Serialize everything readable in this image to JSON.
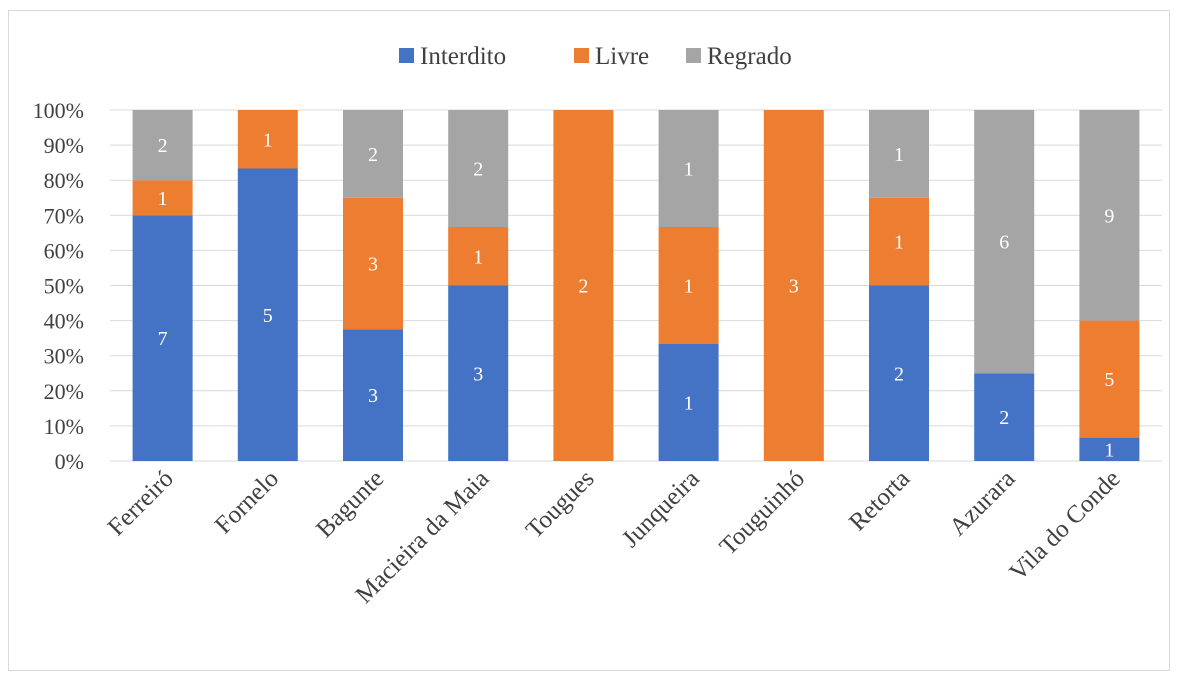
{
  "chart_data": {
    "type": "bar",
    "stacked": "percent",
    "title": "",
    "xlabel": "",
    "ylabel": "",
    "ylim": [
      0,
      100
    ],
    "y_ticks": [
      "0%",
      "10%",
      "20%",
      "30%",
      "40%",
      "50%",
      "60%",
      "70%",
      "80%",
      "90%",
      "100%"
    ],
    "grid": true,
    "legend_position": "top",
    "categories": [
      "Ferreiró",
      "Fornelo",
      "Bagunte",
      "Macieira da Maia",
      "Tougues",
      "Junqueira",
      "Touguinhó",
      "Retorta",
      "Azurara",
      "Vila do Conde"
    ],
    "series": [
      {
        "name": "Interdito",
        "color": "#4472c4",
        "values": [
          7,
          5,
          3,
          3,
          0,
          1,
          0,
          2,
          2,
          1
        ]
      },
      {
        "name": "Livre",
        "color": "#ed7d31",
        "values": [
          1,
          1,
          3,
          1,
          2,
          1,
          3,
          1,
          0,
          5
        ]
      },
      {
        "name": "Regrado",
        "color": "#a5a5a5",
        "values": [
          2,
          0,
          2,
          2,
          0,
          1,
          0,
          1,
          6,
          9
        ]
      }
    ]
  }
}
